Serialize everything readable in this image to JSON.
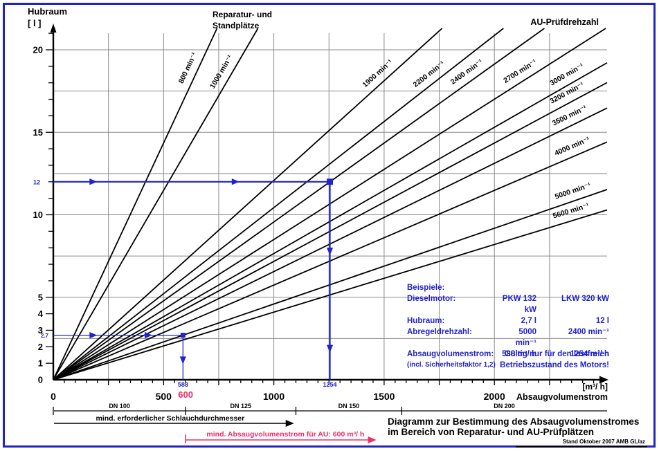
{
  "colors": {
    "accent_blue": "#2222cc",
    "accent_pink": "#ee2d68",
    "grid_gray": "#8a8a8a",
    "line_black": "#000000"
  },
  "header": {
    "y_axis_title": "Hubraum",
    "y_axis_unit": "[ l ]",
    "group_left_label": "Reparatur- und Standplätze",
    "group_right_label": "AU-Prüfdrehzahl",
    "x_axis_unit": "[m³/ h]",
    "x_axis_title": "Absaugvolumenstrom"
  },
  "chart_data": {
    "type": "line",
    "title": "Diagramm zur Bestimmung des Absaugvolumenstromes im Bereich von Reparatur- und AU-Prüfplätzen",
    "xlabel": "Absaugvolumenstrom [m³/h]",
    "ylabel": "Hubraum [l]",
    "xlim": [
      0,
      2510
    ],
    "ylim": [
      0,
      21.3
    ],
    "x_tick_labels": [
      0,
      500,
      1000,
      1500,
      2000
    ],
    "x_minor_tick_step": 50,
    "y_tick_labels": [
      0,
      1,
      2,
      3,
      4,
      5,
      10,
      15,
      20
    ],
    "y_minor_tick_step": 1,
    "grid": {
      "x_step": 250,
      "y_step": 2.5,
      "on": true
    },
    "flow_factor_q_per_v_n": 0.04356,
    "rpm_lines": [
      {
        "rpm": 800,
        "label": "800 min⁻¹",
        "group": "Reparatur- und Standplätze",
        "label_q": 650
      },
      {
        "rpm": 1000,
        "label": "1000 min⁻¹",
        "group": "Reparatur- und Standplätze",
        "label_q": 800
      },
      {
        "rpm": 1900,
        "label": "1900 min⁻¹",
        "group": "AU-Prüfdrehzahl",
        "label_q": 1500
      },
      {
        "rpm": 2200,
        "label": "2200 min⁻¹",
        "group": "AU-Prüfdrehzahl",
        "label_q": 1730
      },
      {
        "rpm": 2400,
        "label": "2400 min⁻¹",
        "group": "AU-Prüfdrehzahl",
        "label_q": 1900
      },
      {
        "rpm": 2700,
        "label": "2700 min⁻¹",
        "group": "AU-Prüfdrehzahl",
        "label_q": 2140
      },
      {
        "rpm": 3000,
        "label": "3000 min⁻¹",
        "group": "AU-Prüfdrehzahl",
        "label_q": 2350
      },
      {
        "rpm": 3200,
        "label": "3200 min⁻¹",
        "group": "AU-Prüfdrehzahl",
        "label_q": 2350
      },
      {
        "rpm": 3500,
        "label": "3500 min⁻¹",
        "group": "AU-Prüfdrehzahl",
        "label_q": 2360
      },
      {
        "rpm": 4000,
        "label": "4000 min⁻¹",
        "group": "AU-Prüfdrehzahl",
        "label_q": 2370
      },
      {
        "rpm": 5000,
        "label": "5000 min⁻¹",
        "group": "AU-Prüfdrehzahl",
        "label_q": 2370
      },
      {
        "rpm": 5600,
        "label": "5600 min⁻¹",
        "group": "AU-Prüfdrehzahl",
        "label_q": 2360
      }
    ],
    "examples_construction": [
      {
        "name": "LKW",
        "hubraum_l": 12,
        "flow_m3h": 1254,
        "y_label": "12",
        "x_label": "1254",
        "h_arrow_q": [
          180,
          825
        ],
        "v_arrow_v": [
          7.8,
          1.9
        ],
        "weight": 2.2,
        "marker": 9,
        "y_label_font": 9
      },
      {
        "name": "PKW",
        "hubraum_l": 2.7,
        "flow_m3h": 588,
        "y_label": "2.7",
        "x_label": "588",
        "h_arrow_q": [
          180,
          430
        ],
        "v_arrow_v": [
          1.2
        ],
        "weight": 1.3,
        "marker": 7,
        "y_label_font": 8
      }
    ],
    "au_min_flow": {
      "value": 600,
      "label": "600"
    },
    "dn_scale": {
      "segments": [
        {
          "label": "DN 100",
          "from_q": 0,
          "to_q": 600
        },
        {
          "label": "DN 125",
          "from_q": 600,
          "to_q": 1100
        },
        {
          "label": "DN 150",
          "from_q": 1100,
          "to_q": 1580
        },
        {
          "label": "DN 200",
          "from_q": 1580,
          "to_q": 2510
        }
      ]
    },
    "hose_annotation": {
      "label": "mind. erforderlicher Schlauchdurchmesser",
      "from_q": 0,
      "to_q": 1060
    },
    "au_annotation": {
      "label": "mind. Absaugvolumenstrom für AU: 600 m³/ h",
      "from_q": 600,
      "to_q": 1430
    }
  },
  "examples_panel": {
    "title": "Beispiele:",
    "rows": [
      {
        "label": "Dieselmotor:",
        "pkw": "PKW 132 kW",
        "lkw": "LKW 320 kW"
      },
      {
        "label": "Hubraum:",
        "pkw": "2,7 l",
        "lkw": "12 l"
      },
      {
        "label": "Abregeldrehzahl:",
        "pkw": "5000 min⁻¹",
        "lkw": "2400 min⁻¹"
      },
      {
        "label": "Absaugvolumenstrom:",
        "pkw": "588 m³/ h",
        "lkw": "1254 m³/ h"
      }
    ],
    "note": "(incl. Sicherheitsfaktor 1,2)",
    "validity_line1": "Gültig nur für den lastfreien",
    "validity_line2": "Betriebszustand des Motors!"
  },
  "caption": {
    "line1": "Diagramm zur Bestimmung des Absaugvolumenstromes",
    "line2": "im Bereich von Reparatur- und AU-Prüfplätzen",
    "stamp": "Stand Oktober 2007 AMB GL/az"
  }
}
